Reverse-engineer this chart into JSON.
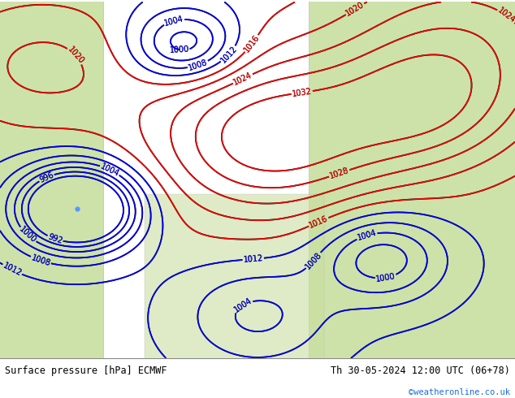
{
  "title_left": "Surface pressure [hPa] ECMWF",
  "title_right": "Th 30-05-2024 12:00 UTC (06+78)",
  "watermark": "©weatheronline.co.uk",
  "bg_color_ocean": "#cfe0ec",
  "bg_color_land_left": "#c8dfa0",
  "bg_color_land_right": "#c8dfa0",
  "bg_color_bottom": "#ffffff",
  "bottom_bar_height": 0.1,
  "label_color_left": "#000000",
  "label_color_right": "#000000",
  "watermark_color": "#1a6adb",
  "figsize": [
    6.34,
    4.9
  ],
  "dpi": 100
}
